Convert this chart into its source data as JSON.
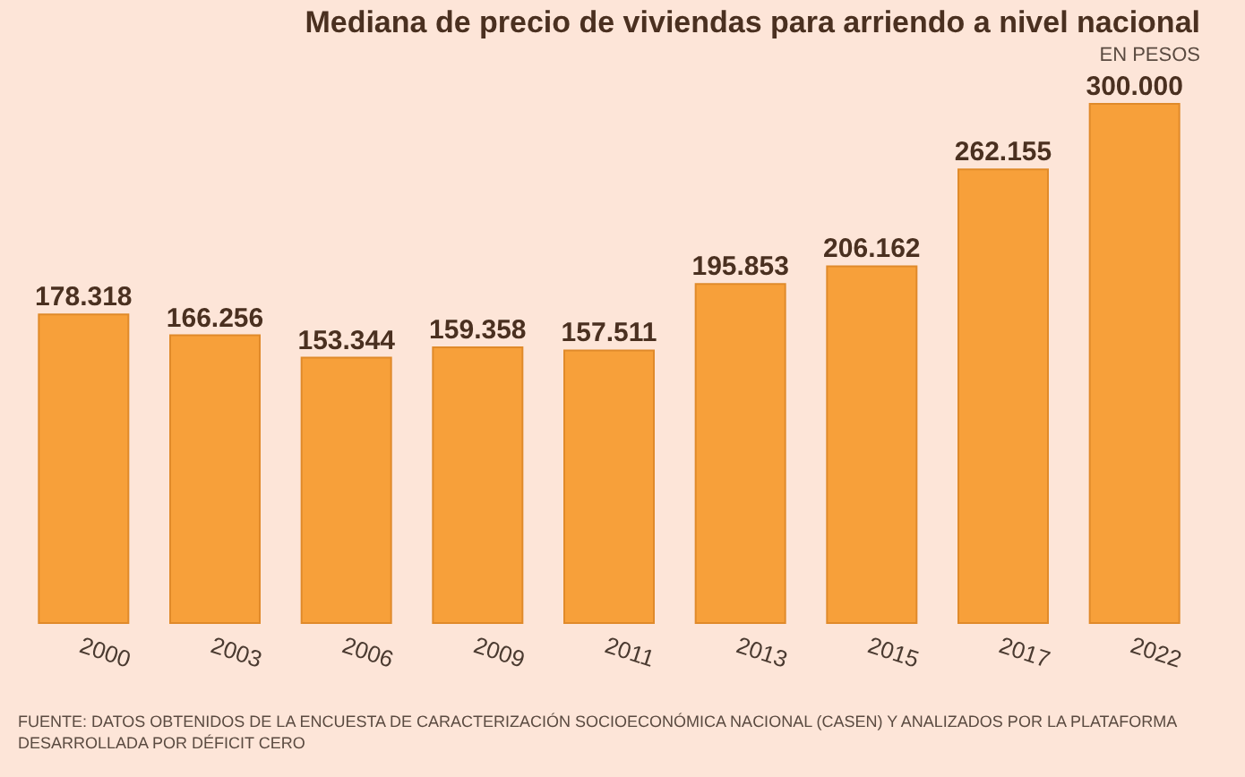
{
  "chart_data": {
    "type": "bar",
    "title": "Mediana de precio de viviendas para arriendo a nivel nacional",
    "subtitle": "EN PESOS",
    "categories": [
      "2000",
      "2003",
      "2006",
      "2009",
      "2011",
      "2013",
      "2015",
      "2017",
      "2022"
    ],
    "values": [
      178318,
      166256,
      153344,
      159358,
      157511,
      195853,
      206162,
      262155,
      300000
    ],
    "value_labels": [
      "178.318",
      "166.256",
      "153.344",
      "159.358",
      "157.511",
      "195.853",
      "206.162",
      "262.155",
      "300.000"
    ],
    "color": "#f7a03a",
    "annotations": [
      "FUENTE: DATOS OBTENIDOS DE LA ENCUESTA DE CARACTERIZACIÓN SOCIOECONÓMICA NACIONAL (CASEN) Y ANALIZADOS POR LA PLATAFORMA DESARROLLADA POR DÉFICIT CERO"
    ]
  }
}
